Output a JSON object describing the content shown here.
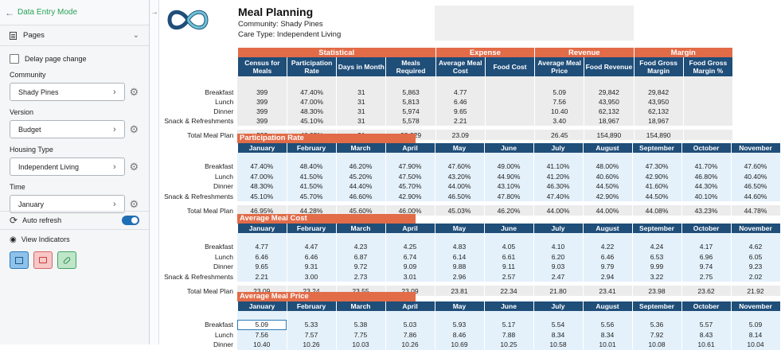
{
  "sidebar": {
    "mode_label": "Data Entry Mode",
    "pages_label": "Pages",
    "delay_label": "Delay page change",
    "fields": [
      {
        "label": "Community",
        "value": "Shady Pines"
      },
      {
        "label": "Version",
        "value": "Budget"
      },
      {
        "label": "Housing Type",
        "value": "Independent Living"
      },
      {
        "label": "Time",
        "value": "January"
      }
    ],
    "auto_refresh_label": "Auto refresh",
    "view_indicators_label": "View Indicators"
  },
  "header": {
    "title": "Meal Planning",
    "community_line": "Community: Shady Pines",
    "care_line": "Care Type: Independent Living"
  },
  "summary": {
    "groups": [
      "Statistical",
      "Expense",
      "Revenue",
      "Margin"
    ],
    "columns": [
      [
        "Census for",
        "Meals"
      ],
      [
        "Participation",
        "Rate"
      ],
      [
        "Days in Month",
        ""
      ],
      [
        "Meals",
        "Required"
      ],
      [
        "Average Meal",
        "Cost"
      ],
      [
        "Food Cost",
        ""
      ],
      [
        "Average Meal",
        "Price"
      ],
      [
        "Food Revenue",
        ""
      ],
      [
        "Food Gross",
        "Margin"
      ],
      [
        "Food Gross",
        "Margin %"
      ]
    ],
    "rows": [
      {
        "label": "Breakfast",
        "values": [
          "399",
          "47.40%",
          "31",
          "5,863",
          "4.77",
          "",
          "5.09",
          "29,842",
          "29,842",
          ""
        ]
      },
      {
        "label": "Lunch",
        "values": [
          "399",
          "47.00%",
          "31",
          "5,813",
          "6.46",
          "",
          "7.56",
          "43,950",
          "43,950",
          ""
        ]
      },
      {
        "label": "Dinner",
        "values": [
          "399",
          "48.30%",
          "31",
          "5,974",
          "9.65",
          "",
          "10.40",
          "62,132",
          "62,132",
          ""
        ]
      },
      {
        "label": "Snack & Refreshments",
        "values": [
          "399",
          "45.10%",
          "31",
          "5,578",
          "2.21",
          "",
          "3.40",
          "18,967",
          "18,967",
          ""
        ]
      }
    ],
    "total": {
      "label": "Total Meal Plan",
      "values": [
        "399",
        "46.95%",
        "31",
        "23,229",
        "23.09",
        "",
        "26.45",
        "154,890",
        "154,890",
        ""
      ]
    }
  },
  "months": [
    "January",
    "February",
    "March",
    "April",
    "May",
    "June",
    "July",
    "August",
    "September",
    "October",
    "November"
  ],
  "sections": [
    {
      "title": "Participation Rate",
      "rows": [
        {
          "label": "Breakfast",
          "values": [
            "47.40%",
            "48.40%",
            "46.20%",
            "47.90%",
            "47.60%",
            "49.00%",
            "41.10%",
            "48.00%",
            "47.30%",
            "41.70%",
            "47.60%"
          ]
        },
        {
          "label": "Lunch",
          "values": [
            "47.00%",
            "41.50%",
            "45.20%",
            "47.50%",
            "43.20%",
            "44.90%",
            "41.20%",
            "40.60%",
            "42.90%",
            "46.80%",
            "40.40%"
          ]
        },
        {
          "label": "Dinner",
          "values": [
            "48.30%",
            "41.50%",
            "44.40%",
            "45.70%",
            "44.00%",
            "43.10%",
            "46.30%",
            "44.50%",
            "41.60%",
            "44.30%",
            "46.50%"
          ]
        },
        {
          "label": "Snack & Refreshments",
          "values": [
            "45.10%",
            "45.70%",
            "46.60%",
            "42.90%",
            "46.50%",
            "47.80%",
            "47.40%",
            "42.90%",
            "44.50%",
            "40.10%",
            "44.60%"
          ]
        }
      ],
      "total": {
        "label": "Total Meal Plan",
        "values": [
          "46.95%",
          "44.28%",
          "45.60%",
          "46.00%",
          "45.03%",
          "46.20%",
          "44.00%",
          "44.00%",
          "44.08%",
          "43.23%",
          "44.78%"
        ]
      }
    },
    {
      "title": "Average Meal Cost",
      "rows": [
        {
          "label": "Breakfast",
          "values": [
            "4.77",
            "4.47",
            "4.23",
            "4.25",
            "4.83",
            "4.05",
            "4.10",
            "4.22",
            "4.24",
            "4.17",
            "4.62"
          ]
        },
        {
          "label": "Lunch",
          "values": [
            "6.46",
            "6.46",
            "6.87",
            "6.74",
            "6.14",
            "6.61",
            "6.20",
            "6.46",
            "6.53",
            "6.96",
            "6.05"
          ]
        },
        {
          "label": "Dinner",
          "values": [
            "9.65",
            "9.31",
            "9.72",
            "9.09",
            "9.88",
            "9.11",
            "9.03",
            "9.79",
            "9.99",
            "9.74",
            "9.23"
          ]
        },
        {
          "label": "Snack & Refreshments",
          "values": [
            "2.21",
            "3.00",
            "2.73",
            "3.01",
            "2.96",
            "2.57",
            "2.47",
            "2.94",
            "3.22",
            "2.75",
            "2.02"
          ]
        }
      ],
      "total": {
        "label": "Total Meal Plan",
        "values": [
          "23.09",
          "23.24",
          "23.55",
          "23.09",
          "23.81",
          "22.34",
          "21.80",
          "23.41",
          "23.98",
          "23.62",
          "21.92"
        ]
      }
    },
    {
      "title": "Average Meal Price",
      "rows": [
        {
          "label": "Breakfast",
          "values": [
            "5.09",
            "5.33",
            "5.38",
            "5.03",
            "5.93",
            "5.17",
            "5.54",
            "5.56",
            "5.36",
            "5.57",
            "5.09"
          ]
        },
        {
          "label": "Lunch",
          "values": [
            "7.56",
            "7.57",
            "7.75",
            "7.86",
            "8.46",
            "7.88",
            "8.34",
            "8.34",
            "7.92",
            "8.43",
            "8.14"
          ]
        },
        {
          "label": "Dinner",
          "values": [
            "10.40",
            "10.26",
            "10.03",
            "10.26",
            "10.69",
            "10.25",
            "10.58",
            "10.01",
            "10.08",
            "10.61",
            "10.04"
          ]
        }
      ]
    }
  ]
}
